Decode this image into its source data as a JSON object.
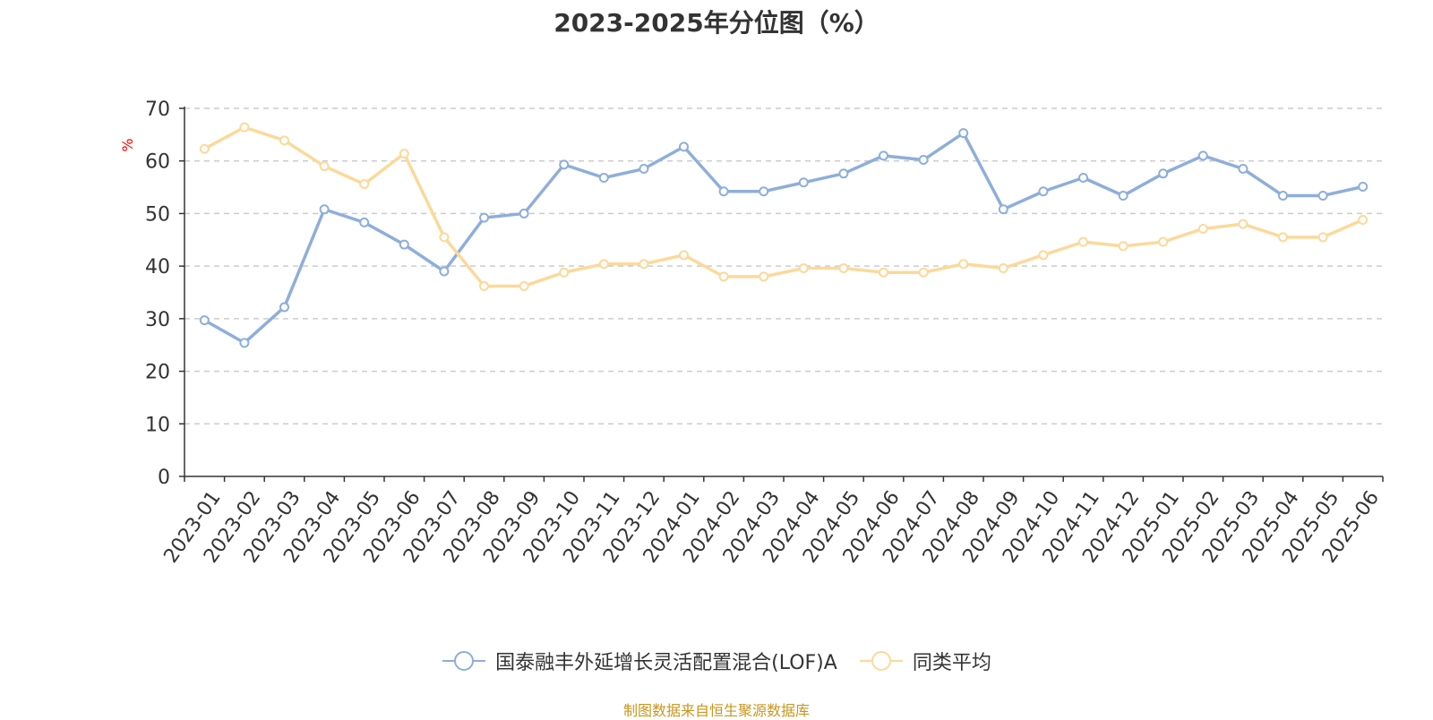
{
  "chart_data": {
    "type": "line",
    "title": "2023-2025年分位图（%）",
    "ylabel": "%",
    "ylim": [
      0,
      70
    ],
    "yticks": [
      0,
      10,
      20,
      30,
      40,
      50,
      60,
      70
    ],
    "grid": true,
    "legend_position": "bottom",
    "categories": [
      "2023-01",
      "2023-02",
      "2023-03",
      "2023-04",
      "2023-05",
      "2023-06",
      "2023-07",
      "2023-08",
      "2023-09",
      "2023-10",
      "2023-11",
      "2023-12",
      "2024-01",
      "2024-02",
      "2024-03",
      "2024-04",
      "2024-05",
      "2024-06",
      "2024-07",
      "2024-08",
      "2024-09",
      "2024-10",
      "2024-11",
      "2024-12",
      "2025-01",
      "2025-02",
      "2025-03",
      "2025-04",
      "2025-05",
      "2025-06"
    ],
    "series": [
      {
        "name": "国泰融丰外延增长灵活配置混合(LOF)A",
        "color": "#8eaedb",
        "values": [
          29.7,
          25.4,
          32.2,
          50.8,
          48.3,
          44.1,
          39.0,
          49.2,
          50.0,
          59.3,
          56.8,
          58.5,
          62.7,
          54.2,
          54.2,
          55.9,
          57.6,
          61.0,
          60.2,
          65.3,
          50.8,
          54.2,
          56.8,
          53.4,
          57.6,
          61.0,
          58.5,
          53.4,
          53.4,
          55.1
        ]
      },
      {
        "name": "同类平均",
        "color": "#fcd99a",
        "values": [
          62.3,
          66.4,
          63.9,
          59.0,
          55.6,
          61.4,
          45.5,
          36.2,
          36.2,
          38.8,
          40.4,
          40.4,
          42.1,
          38.0,
          38.0,
          39.6,
          39.6,
          38.8,
          38.8,
          40.4,
          39.6,
          42.1,
          44.6,
          43.8,
          44.6,
          47.1,
          48.0,
          45.5,
          45.5,
          48.8
        ]
      }
    ]
  },
  "footer": {
    "source": "制图数据来自恒生聚源数据库"
  }
}
